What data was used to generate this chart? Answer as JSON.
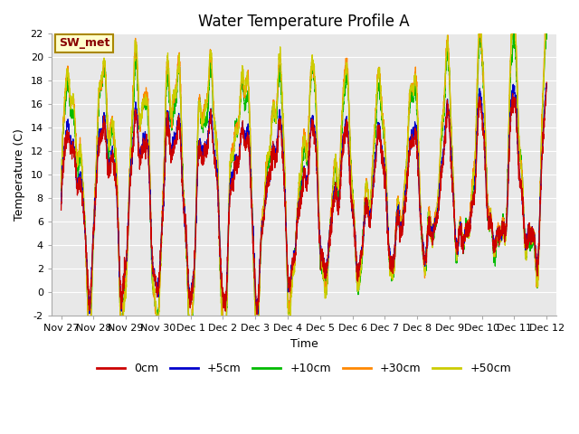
{
  "title": "Water Temperature Profile A",
  "xlabel": "Time",
  "ylabel": "Temperature (C)",
  "ylim": [
    -2,
    22
  ],
  "xlim_start": -0.3,
  "xlim_end": 15.3,
  "xtick_labels": [
    "Nov 27",
    "Nov 28",
    "Nov 29",
    "Nov 30",
    "Dec 1",
    "Dec 2",
    "Dec 3",
    "Dec 4",
    "Dec 5",
    "Dec 6",
    "Dec 7",
    "Dec 8",
    "Dec 9",
    "Dec 10",
    "Dec 11",
    "Dec 12"
  ],
  "xtick_positions": [
    0,
    1,
    2,
    3,
    4,
    5,
    6,
    7,
    8,
    9,
    10,
    11,
    12,
    13,
    14,
    15
  ],
  "ytick_labels": [
    "-2",
    "0",
    "2",
    "4",
    "6",
    "8",
    "10",
    "12",
    "14",
    "16",
    "18",
    "20",
    "22"
  ],
  "ytick_positions": [
    -2,
    0,
    2,
    4,
    6,
    8,
    10,
    12,
    14,
    16,
    18,
    20,
    22
  ],
  "legend_labels": [
    "0cm",
    "+5cm",
    "+10cm",
    "+30cm",
    "+50cm"
  ],
  "line_colors": [
    "#cc0000",
    "#0000cc",
    "#00bb00",
    "#ff8800",
    "#cccc00"
  ],
  "annotation_text": "SW_met",
  "annotation_bg": "#ffffcc",
  "annotation_border": "#aa8800",
  "plot_bg_color": "#e8e8e8",
  "title_fontsize": 12,
  "axis_label_fontsize": 9,
  "tick_fontsize": 8
}
